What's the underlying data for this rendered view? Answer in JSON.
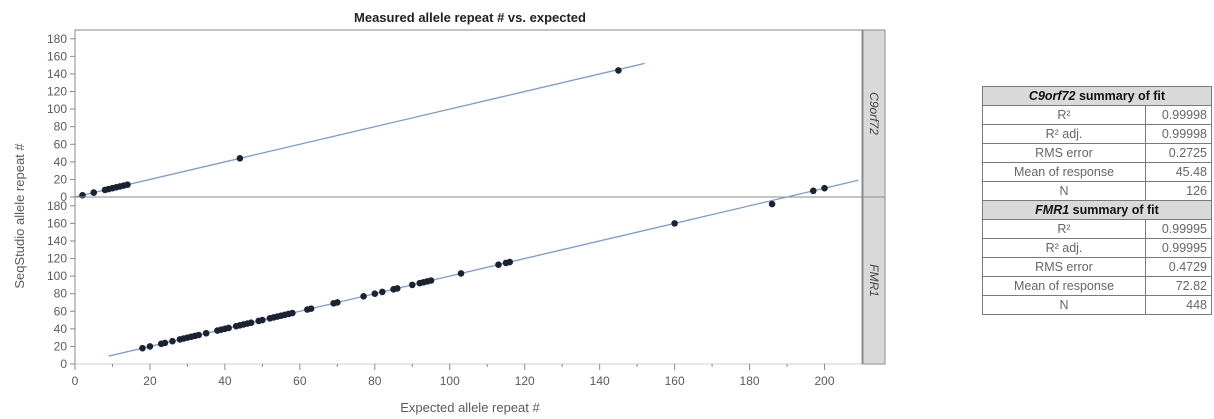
{
  "chart_data": {
    "type": "scatter",
    "title": "Measured allele repeat # vs. expected",
    "xlabel": "Expected allele repeat #",
    "ylabel": "SeqStudio allele repeat #",
    "xlim": [
      0,
      210
    ],
    "x_ticks": [
      0,
      20,
      40,
      60,
      80,
      100,
      120,
      140,
      160,
      180,
      200
    ],
    "ylim": [
      0,
      190
    ],
    "y_ticks": [
      0,
      20,
      40,
      60,
      80,
      100,
      120,
      140,
      160,
      180
    ],
    "grid": false,
    "panels": [
      {
        "strip_label": "C9orf72",
        "series": [
          {
            "x": [
              2,
              5,
              8,
              9,
              10,
              11,
              12,
              13,
              14,
              44,
              145
            ],
            "y": [
              2,
              5,
              8,
              9,
              10,
              11,
              12,
              13,
              14,
              44,
              144
            ]
          }
        ],
        "fit_line": {
          "x": [
            0,
            152
          ],
          "y": [
            0,
            152
          ]
        }
      },
      {
        "strip_label": "FMR1",
        "series": [
          {
            "x": [
              18,
              20,
              23,
              24,
              26,
              28,
              29,
              30,
              31,
              32,
              33,
              35,
              38,
              39,
              40,
              41,
              43,
              44,
              45,
              46,
              47,
              49,
              50,
              52,
              53,
              54,
              55,
              56,
              57,
              58,
              62,
              63,
              69,
              70,
              77,
              80,
              82,
              85,
              86,
              90,
              92,
              93,
              94,
              95,
              103,
              113,
              115,
              116,
              160,
              186,
              197,
              200
            ],
            "y": [
              18,
              20,
              23,
              24,
              26,
              28,
              29,
              30,
              31,
              32,
              33,
              35,
              38,
              39,
              40,
              41,
              43,
              44,
              45,
              46,
              47,
              49,
              50,
              52,
              53,
              54,
              55,
              56,
              57,
              58,
              62,
              63,
              69,
              70,
              77,
              80,
              82,
              85,
              86,
              90,
              92,
              93,
              94,
              95,
              103,
              113,
              115,
              116,
              160,
              182,
              197,
              200
            ]
          }
        ],
        "fit_line": {
          "x": [
            9,
            209
          ],
          "y": [
            9,
            209
          ]
        }
      }
    ],
    "tables": [
      {
        "title_gene": "C9orf72",
        "title_rest": " summary of fit",
        "rows": [
          {
            "label": "R²",
            "value": "0.99998"
          },
          {
            "label": "R² adj.",
            "value": "0.99998"
          },
          {
            "label": "RMS error",
            "value": "0.2725"
          },
          {
            "label": "Mean of response",
            "value": "45.48"
          },
          {
            "label": "N",
            "value": "126"
          }
        ]
      },
      {
        "title_gene": "FMR1",
        "title_rest": " summary of fit",
        "rows": [
          {
            "label": "R²",
            "value": "0.99995"
          },
          {
            "label": "R² adj.",
            "value": "0.99995"
          },
          {
            "label": "RMS error",
            "value": "0.4729"
          },
          {
            "label": "Mean of response",
            "value": "72.82"
          },
          {
            "label": "N",
            "value": "448"
          }
        ]
      }
    ],
    "colors": {
      "fit_line": "#7a9bd0",
      "points": "#1a2233",
      "strip_bg": "#d9d9d9",
      "axis": "#8a8a8a"
    }
  }
}
